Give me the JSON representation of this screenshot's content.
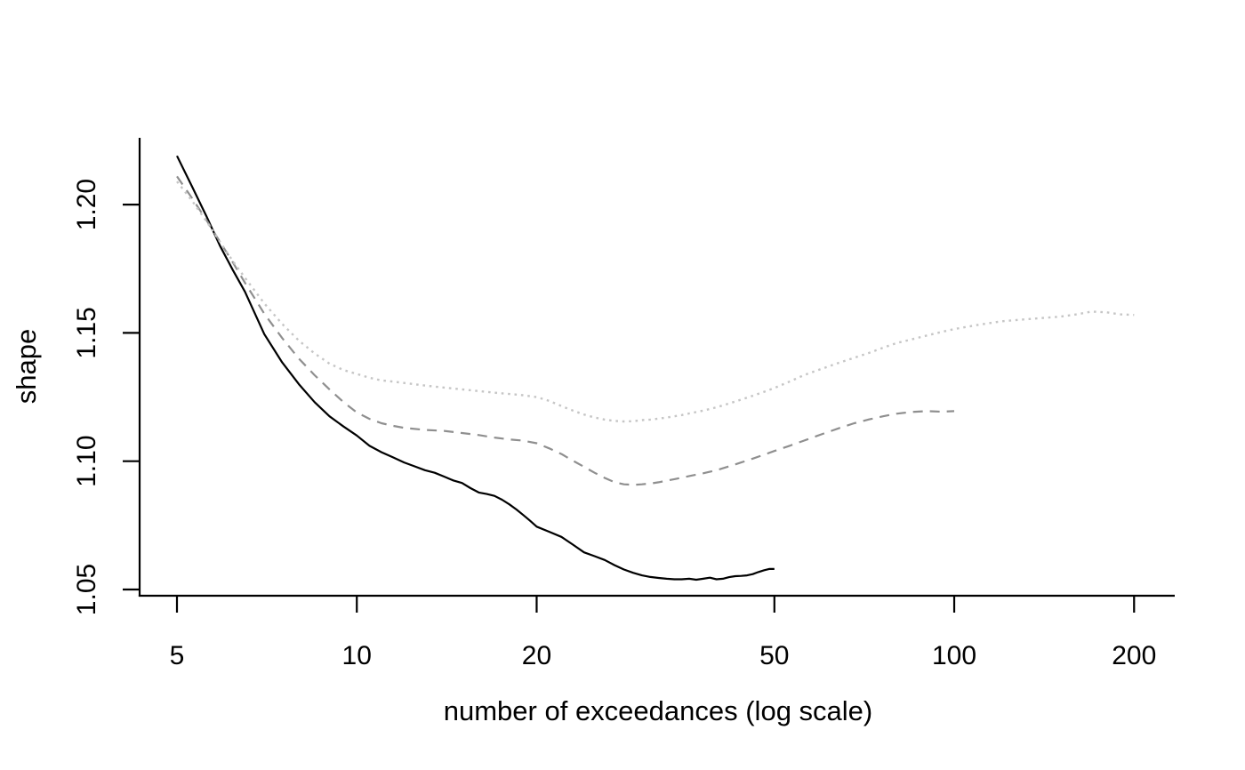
{
  "chart_data": {
    "type": "line",
    "title": "",
    "xlabel": "number of exceedances (log scale)",
    "ylabel": "shape",
    "x_scale": "log10",
    "y_scale": "linear",
    "grid": false,
    "legend": "none",
    "x_ticks": [
      5,
      10,
      20,
      50,
      100,
      200
    ],
    "y_tick_labels": [
      "1.05",
      "1.10",
      "1.15",
      "1.20"
    ],
    "xlim": [
      4.3,
      233
    ],
    "ylim": [
      1.048,
      1.226
    ],
    "axis_color": "#000000",
    "background_color": "#ffffff",
    "series": [
      {
        "name": "solid black curve (ends at 50 exceedances)",
        "style": "solid",
        "color": "#000000",
        "points": [
          [
            5,
            1.219
          ],
          [
            5.3,
            1.207
          ],
          [
            5.6,
            1.1955
          ],
          [
            5.9,
            1.184
          ],
          [
            6.2,
            1.1745
          ],
          [
            6.5,
            1.166
          ],
          [
            7,
            1.1495
          ],
          [
            7.5,
            1.1385
          ],
          [
            8,
            1.13
          ],
          [
            8.5,
            1.123
          ],
          [
            9,
            1.1175
          ],
          [
            9.5,
            1.1135
          ],
          [
            10,
            1.11
          ],
          [
            10.5,
            1.106
          ],
          [
            11,
            1.1035
          ],
          [
            11.5,
            1.1015
          ],
          [
            12,
            1.0995
          ],
          [
            12.5,
            1.098
          ],
          [
            13,
            1.0965
          ],
          [
            13.5,
            1.0955
          ],
          [
            14,
            1.094
          ],
          [
            14.5,
            1.0925
          ],
          [
            15,
            1.0915
          ],
          [
            15.5,
            1.0895
          ],
          [
            16,
            1.0878
          ],
          [
            16.5,
            1.0872
          ],
          [
            17,
            1.0865
          ],
          [
            17.5,
            1.085
          ],
          [
            18,
            1.0832
          ],
          [
            18.5,
            1.0812
          ],
          [
            19,
            1.079
          ],
          [
            19.5,
            1.0768
          ],
          [
            20,
            1.0745
          ],
          [
            21,
            1.0725
          ],
          [
            22,
            1.0705
          ],
          [
            23,
            1.0675
          ],
          [
            24,
            1.0645
          ],
          [
            25,
            1.063
          ],
          [
            26,
            1.0615
          ],
          [
            27,
            1.0595
          ],
          [
            28,
            1.0578
          ],
          [
            29,
            1.0565
          ],
          [
            30,
            1.0555
          ],
          [
            31,
            1.0549
          ],
          [
            32,
            1.0545
          ],
          [
            33,
            1.0542
          ],
          [
            34,
            1.054
          ],
          [
            35,
            1.054
          ],
          [
            36,
            1.0542
          ],
          [
            37,
            1.0538
          ],
          [
            38,
            1.0542
          ],
          [
            39,
            1.0546
          ],
          [
            40,
            1.054
          ],
          [
            41,
            1.0542
          ],
          [
            42,
            1.0548
          ],
          [
            43,
            1.0552
          ],
          [
            44,
            1.0553
          ],
          [
            45,
            1.0555
          ],
          [
            46,
            1.056
          ],
          [
            47,
            1.0568
          ],
          [
            48,
            1.0575
          ],
          [
            49,
            1.058
          ],
          [
            50,
            1.058
          ]
        ]
      },
      {
        "name": "dashed gray curve (ends at 100 exceedances)",
        "style": "dashed",
        "color": "#8f8f8f",
        "points": [
          [
            5,
            1.211
          ],
          [
            5.3,
            1.2025
          ],
          [
            5.6,
            1.194
          ],
          [
            5.9,
            1.1855
          ],
          [
            6.2,
            1.1775
          ],
          [
            6.5,
            1.1695
          ],
          [
            7,
            1.1575
          ],
          [
            7.5,
            1.148
          ],
          [
            8,
            1.14
          ],
          [
            8.5,
            1.1335
          ],
          [
            9,
            1.128
          ],
          [
            9.5,
            1.123
          ],
          [
            10,
            1.119
          ],
          [
            10.5,
            1.1165
          ],
          [
            11,
            1.1148
          ],
          [
            11.5,
            1.1138
          ],
          [
            12,
            1.113
          ],
          [
            13,
            1.1122
          ],
          [
            14,
            1.1118
          ],
          [
            15,
            1.111
          ],
          [
            16,
            1.1102
          ],
          [
            17,
            1.1092
          ],
          [
            18,
            1.1085
          ],
          [
            19,
            1.108
          ],
          [
            20,
            1.107
          ],
          [
            21,
            1.105
          ],
          [
            22,
            1.1028
          ],
          [
            23,
            1.1002
          ],
          [
            24,
            1.0978
          ],
          [
            25,
            1.0955
          ],
          [
            26,
            1.0935
          ],
          [
            27,
            1.0918
          ],
          [
            28,
            1.091
          ],
          [
            29,
            1.0908
          ],
          [
            30,
            1.091
          ],
          [
            31,
            1.0913
          ],
          [
            32,
            1.0918
          ],
          [
            33,
            1.0924
          ],
          [
            34,
            1.093
          ],
          [
            35,
            1.0936
          ],
          [
            36,
            1.0942
          ],
          [
            38,
            1.0953
          ],
          [
            40,
            1.0965
          ],
          [
            42,
            1.098
          ],
          [
            44,
            1.0995
          ],
          [
            46,
            1.101
          ],
          [
            48,
            1.1025
          ],
          [
            50,
            1.104
          ],
          [
            53,
            1.106
          ],
          [
            56,
            1.108
          ],
          [
            60,
            1.1105
          ],
          [
            64,
            1.1128
          ],
          [
            68,
            1.1148
          ],
          [
            72,
            1.1163
          ],
          [
            76,
            1.1175
          ],
          [
            80,
            1.1185
          ],
          [
            85,
            1.1192
          ],
          [
            90,
            1.1195
          ],
          [
            95,
            1.1193
          ],
          [
            100,
            1.1195
          ]
        ]
      },
      {
        "name": "dotted light-gray curve (ends at 200 exceedances)",
        "style": "dotted",
        "color": "#c6c6c6",
        "points": [
          [
            5,
            1.209
          ],
          [
            5.3,
            1.2015
          ],
          [
            5.6,
            1.1935
          ],
          [
            5.9,
            1.1855
          ],
          [
            6.2,
            1.178
          ],
          [
            6.5,
            1.1715
          ],
          [
            7,
            1.1615
          ],
          [
            7.5,
            1.1535
          ],
          [
            8,
            1.147
          ],
          [
            8.5,
            1.142
          ],
          [
            9,
            1.138
          ],
          [
            9.5,
            1.1355
          ],
          [
            10,
            1.134
          ],
          [
            10.5,
            1.1325
          ],
          [
            11,
            1.1315
          ],
          [
            11.5,
            1.131
          ],
          [
            12,
            1.1305
          ],
          [
            13,
            1.1295
          ],
          [
            14,
            1.1287
          ],
          [
            15,
            1.128
          ],
          [
            16,
            1.1273
          ],
          [
            17,
            1.1267
          ],
          [
            18,
            1.1262
          ],
          [
            19,
            1.1257
          ],
          [
            20,
            1.125
          ],
          [
            21,
            1.1235
          ],
          [
            22,
            1.1215
          ],
          [
            23,
            1.1197
          ],
          [
            24,
            1.1182
          ],
          [
            25,
            1.117
          ],
          [
            26,
            1.1162
          ],
          [
            27,
            1.1157
          ],
          [
            28,
            1.1155
          ],
          [
            29,
            1.1156
          ],
          [
            30,
            1.116
          ],
          [
            31,
            1.1162
          ],
          [
            32,
            1.1166
          ],
          [
            33,
            1.117
          ],
          [
            34,
            1.1175
          ],
          [
            35,
            1.118
          ],
          [
            36,
            1.1186
          ],
          [
            38,
            1.1197
          ],
          [
            40,
            1.121
          ],
          [
            42,
            1.1225
          ],
          [
            44,
            1.124
          ],
          [
            46,
            1.1255
          ],
          [
            48,
            1.127
          ],
          [
            50,
            1.1285
          ],
          [
            53,
            1.131
          ],
          [
            56,
            1.1335
          ],
          [
            60,
            1.136
          ],
          [
            64,
            1.1383
          ],
          [
            68,
            1.1403
          ],
          [
            72,
            1.1422
          ],
          [
            76,
            1.1442
          ],
          [
            80,
            1.146
          ],
          [
            85,
            1.1475
          ],
          [
            90,
            1.149
          ],
          [
            95,
            1.1503
          ],
          [
            100,
            1.1515
          ],
          [
            110,
            1.1532
          ],
          [
            120,
            1.1545
          ],
          [
            130,
            1.1552
          ],
          [
            140,
            1.1558
          ],
          [
            150,
            1.1563
          ],
          [
            160,
            1.1572
          ],
          [
            170,
            1.1583
          ],
          [
            180,
            1.158
          ],
          [
            190,
            1.1572
          ],
          [
            200,
            1.157
          ]
        ]
      }
    ]
  }
}
